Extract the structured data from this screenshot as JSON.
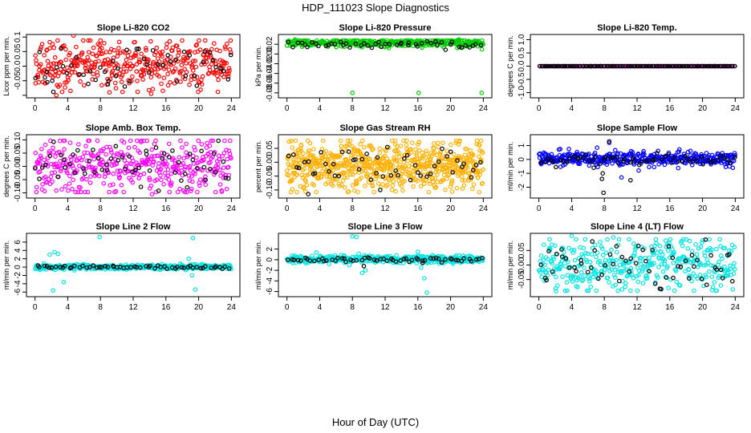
{
  "figure": {
    "title": "HDP_111023  Slope Diagnostics",
    "xlabel": "Hour of Day (UTC)"
  },
  "chart_data": [
    {
      "type": "scatter",
      "title": "Slope Li-820 CO2",
      "ylabel": "Licor ppm per min.",
      "xlim": [
        0,
        24
      ],
      "ylim": [
        -0.1,
        0.1
      ],
      "xticks": [
        0,
        4,
        8,
        12,
        16,
        20,
        24
      ],
      "yticks": [
        -0.1,
        -0.05,
        0,
        0.05,
        0.1
      ],
      "ytick_labels": [
        "",
        "-0.05",
        "0.0",
        "0.05",
        "0.1"
      ],
      "grid": false,
      "series": [
        {
          "color": "#ff0000",
          "n": 400,
          "seed": 11,
          "center": 0.01,
          "spread": 0.045,
          "outliers": [
            [
              2.6,
              -0.1
            ],
            [
              4.7,
              0.105
            ],
            [
              9.1,
              -0.09
            ],
            [
              14.2,
              -0.095
            ]
          ]
        },
        {
          "color": "#000000",
          "n": 50,
          "seed": 12,
          "center": 0.0,
          "spread": 0.04,
          "outliers": [
            [
              1.5,
              -0.055
            ],
            [
              2.1,
              -0.05
            ],
            [
              9.0,
              -0.05
            ],
            [
              23.6,
              -0.045
            ]
          ]
        }
      ]
    },
    {
      "type": "scatter",
      "title": "Slope Li-820 Pressure",
      "ylabel": "kPa per min.",
      "xlim": [
        0,
        24
      ],
      "ylim": [
        -0.085,
        0.035
      ],
      "xticks": [
        0,
        4,
        8,
        12,
        16,
        20,
        24
      ],
      "yticks": [
        -0.08,
        -0.06,
        -0.04,
        -0.02,
        0,
        0.02
      ],
      "ytick_labels": [
        "-0.08",
        "-0.06",
        "-0.04",
        "-0.02",
        "0.00",
        "0.02"
      ],
      "grid": false,
      "series": [
        {
          "color": "#00cc00",
          "n": 400,
          "seed": 21,
          "center": 0.023,
          "spread": 0.004,
          "outliers": [
            [
              8.0,
              -0.08
            ],
            [
              16.1,
              -0.08
            ],
            [
              23.8,
              -0.08
            ],
            [
              1.0,
              0.03
            ],
            [
              21.0,
              0.03
            ]
          ]
        },
        {
          "color": "#000000",
          "n": 50,
          "seed": 22,
          "center": 0.02,
          "spread": 0.003,
          "outliers": []
        }
      ]
    },
    {
      "type": "scatter",
      "title": "Slope Li-820 Temp.",
      "ylabel": "degrees C per min.",
      "xlim": [
        0,
        24
      ],
      "ylim": [
        -1.1,
        1.1
      ],
      "xticks": [
        0,
        4,
        8,
        12,
        16,
        20,
        24
      ],
      "yticks": [
        -1.0,
        -0.5,
        0,
        0.5,
        1.0
      ],
      "ytick_labels": [
        "-1.0",
        "-0.5",
        "0.0",
        "0.5",
        "1.0"
      ],
      "grid": false,
      "series": [
        {
          "color": "#cc00cc",
          "n": 120,
          "seed": 31,
          "center": 0.0,
          "spread": 0.0,
          "outliers": []
        },
        {
          "color": "#000000",
          "n": 120,
          "seed": 32,
          "center": 0.0,
          "spread": 0.0,
          "outliers": []
        }
      ]
    },
    {
      "type": "scatter",
      "title": "Slope Amb. Box Temp.",
      "ylabel": "degrees C per min.",
      "xlim": [
        0,
        24
      ],
      "ylim": [
        -0.11,
        0.11
      ],
      "xticks": [
        0,
        4,
        8,
        12,
        16,
        20,
        24
      ],
      "yticks": [
        -0.1,
        -0.05,
        0,
        0.05,
        0.1
      ],
      "ytick_labels": [
        "-0.10",
        "-0.05",
        "0.00",
        "0.05",
        "0.10"
      ],
      "grid": false,
      "series": [
        {
          "color": "#ff00ff",
          "n": 400,
          "seed": 41,
          "center": 0.0,
          "spread": 0.05,
          "outliers": [
            [
              14.3,
              -0.105
            ]
          ]
        },
        {
          "color": "#000000",
          "n": 60,
          "seed": 42,
          "center": 0.0,
          "spread": 0.045,
          "outliers": []
        }
      ]
    },
    {
      "type": "scatter",
      "title": "Slope Gas Stream RH",
      "ylabel": "percent per min.",
      "xlim": [
        0,
        24
      ],
      "ylim": [
        -0.12,
        0.09
      ],
      "xticks": [
        0,
        4,
        8,
        12,
        16,
        20,
        24
      ],
      "yticks": [
        -0.1,
        -0.05,
        0,
        0.05
      ],
      "ytick_labels": [
        "-0.10",
        "-0.05",
        "0.00",
        "0.05"
      ],
      "grid": false,
      "series": [
        {
          "color": "#ffb000",
          "n": 700,
          "seed": 51,
          "center": -0.01,
          "spread": 0.042,
          "outliers": []
        },
        {
          "color": "#000000",
          "n": 50,
          "seed": 52,
          "center": -0.01,
          "spread": 0.035,
          "outliers": [
            [
              2.6,
              -0.115
            ],
            [
              11.4,
              -0.1
            ]
          ]
        }
      ]
    },
    {
      "type": "scatter",
      "title": "Slope Sample Flow",
      "ylabel": "ml/min per min.",
      "xlim": [
        0,
        24
      ],
      "ylim": [
        -2.6,
        1.6
      ],
      "xticks": [
        0,
        4,
        8,
        12,
        16,
        20,
        24
      ],
      "yticks": [
        -2,
        -1,
        0,
        1
      ],
      "ytick_labels": [
        "-2",
        "-1",
        "0",
        "1"
      ],
      "grid": false,
      "series": [
        {
          "color": "#0000ff",
          "n": 400,
          "seed": 61,
          "center": 0.05,
          "spread": 0.25,
          "outliers": [
            [
              8.6,
              1.2
            ],
            [
              10.1,
              -1.3
            ],
            [
              12.2,
              -0.8
            ]
          ]
        },
        {
          "color": "#000000",
          "n": 60,
          "seed": 62,
          "center": -0.05,
          "spread": 0.2,
          "outliers": [
            [
              8.6,
              1.3
            ],
            [
              7.9,
              -2.4
            ],
            [
              7.7,
              -1.4
            ],
            [
              7.8,
              -1.0
            ],
            [
              6.7,
              -0.6
            ],
            [
              11.2,
              -1.5
            ]
          ]
        }
      ]
    },
    {
      "type": "scatter",
      "title": "Slope Line 2 Flow",
      "ylabel": "ml/min per min.",
      "xlim": [
        0,
        24
      ],
      "ylim": [
        -6.5,
        7.5
      ],
      "xticks": [
        0,
        4,
        8,
        12,
        16,
        20,
        24
      ],
      "yticks": [
        -6,
        -4,
        -2,
        0,
        2,
        4,
        6
      ],
      "ytick_labels": [
        "-6",
        "-4",
        "-2",
        "0",
        "2",
        "4",
        "6"
      ],
      "grid": false,
      "series": [
        {
          "color": "#00e5e5",
          "n": 400,
          "seed": 71,
          "center": 0.0,
          "spread": 0.3,
          "outliers": [
            [
              1.8,
              3.0
            ],
            [
              2.4,
              3.6
            ],
            [
              2.8,
              3.2
            ],
            [
              2.2,
              -5.6
            ],
            [
              3.5,
              -3.6
            ],
            [
              7.9,
              7.2
            ],
            [
              19.3,
              7.0
            ],
            [
              19.6,
              -5.4
            ],
            [
              18.8,
              2.0
            ],
            [
              19.2,
              -2.0
            ]
          ]
        },
        {
          "color": "#000000",
          "n": 60,
          "seed": 72,
          "center": 0.0,
          "spread": 0.2,
          "outliers": []
        }
      ]
    },
    {
      "type": "scatter",
      "title": "Slope Line 3 Flow",
      "ylabel": "ml/min per min.",
      "xlim": [
        0,
        24
      ],
      "ylim": [
        -6.5,
        4.5
      ],
      "xticks": [
        0,
        4,
        8,
        12,
        16,
        20,
        24
      ],
      "yticks": [
        -6,
        -4,
        -2,
        0,
        2
      ],
      "ytick_labels": [
        "-6",
        "-4",
        "-2",
        "0",
        "2"
      ],
      "grid": false,
      "series": [
        {
          "color": "#00e5e5",
          "n": 400,
          "seed": 81,
          "center": 0.1,
          "spread": 0.35,
          "outliers": [
            [
              8.0,
              4.4
            ],
            [
              8.5,
              4.3
            ],
            [
              9.2,
              -2.5
            ],
            [
              9.6,
              -2.0
            ],
            [
              16.4,
              -1.5
            ],
            [
              16.8,
              -3.5
            ],
            [
              17.1,
              -6.2
            ],
            [
              16.0,
              1.5
            ]
          ]
        },
        {
          "color": "#000000",
          "n": 60,
          "seed": 82,
          "center": 0.05,
          "spread": 0.2,
          "outliers": [
            [
              9.4,
              -1.2
            ],
            [
              16.6,
              -0.6
            ]
          ]
        }
      ]
    },
    {
      "type": "scatter",
      "title": "Slope Line 4 (LT) Flow",
      "ylabel": "ml/min per min.",
      "xlim": [
        0,
        24
      ],
      "ylim": [
        -0.1,
        0.1
      ],
      "xticks": [
        0,
        4,
        8,
        12,
        16,
        20,
        24
      ],
      "yticks": [
        -0.05,
        0,
        0.05
      ],
      "ytick_labels": [
        "-0.05",
        "0.00",
        "0.05"
      ],
      "grid": false,
      "series": [
        {
          "color": "#00e5e5",
          "n": 400,
          "seed": 91,
          "center": 0.0,
          "spread": 0.045,
          "outliers": [
            [
              4.0,
              0.1
            ],
            [
              9.1,
              0.095
            ],
            [
              2.1,
              -0.09
            ]
          ]
        },
        {
          "color": "#000000",
          "n": 60,
          "seed": 92,
          "center": 0.0,
          "spread": 0.04,
          "outliers": []
        }
      ]
    }
  ]
}
